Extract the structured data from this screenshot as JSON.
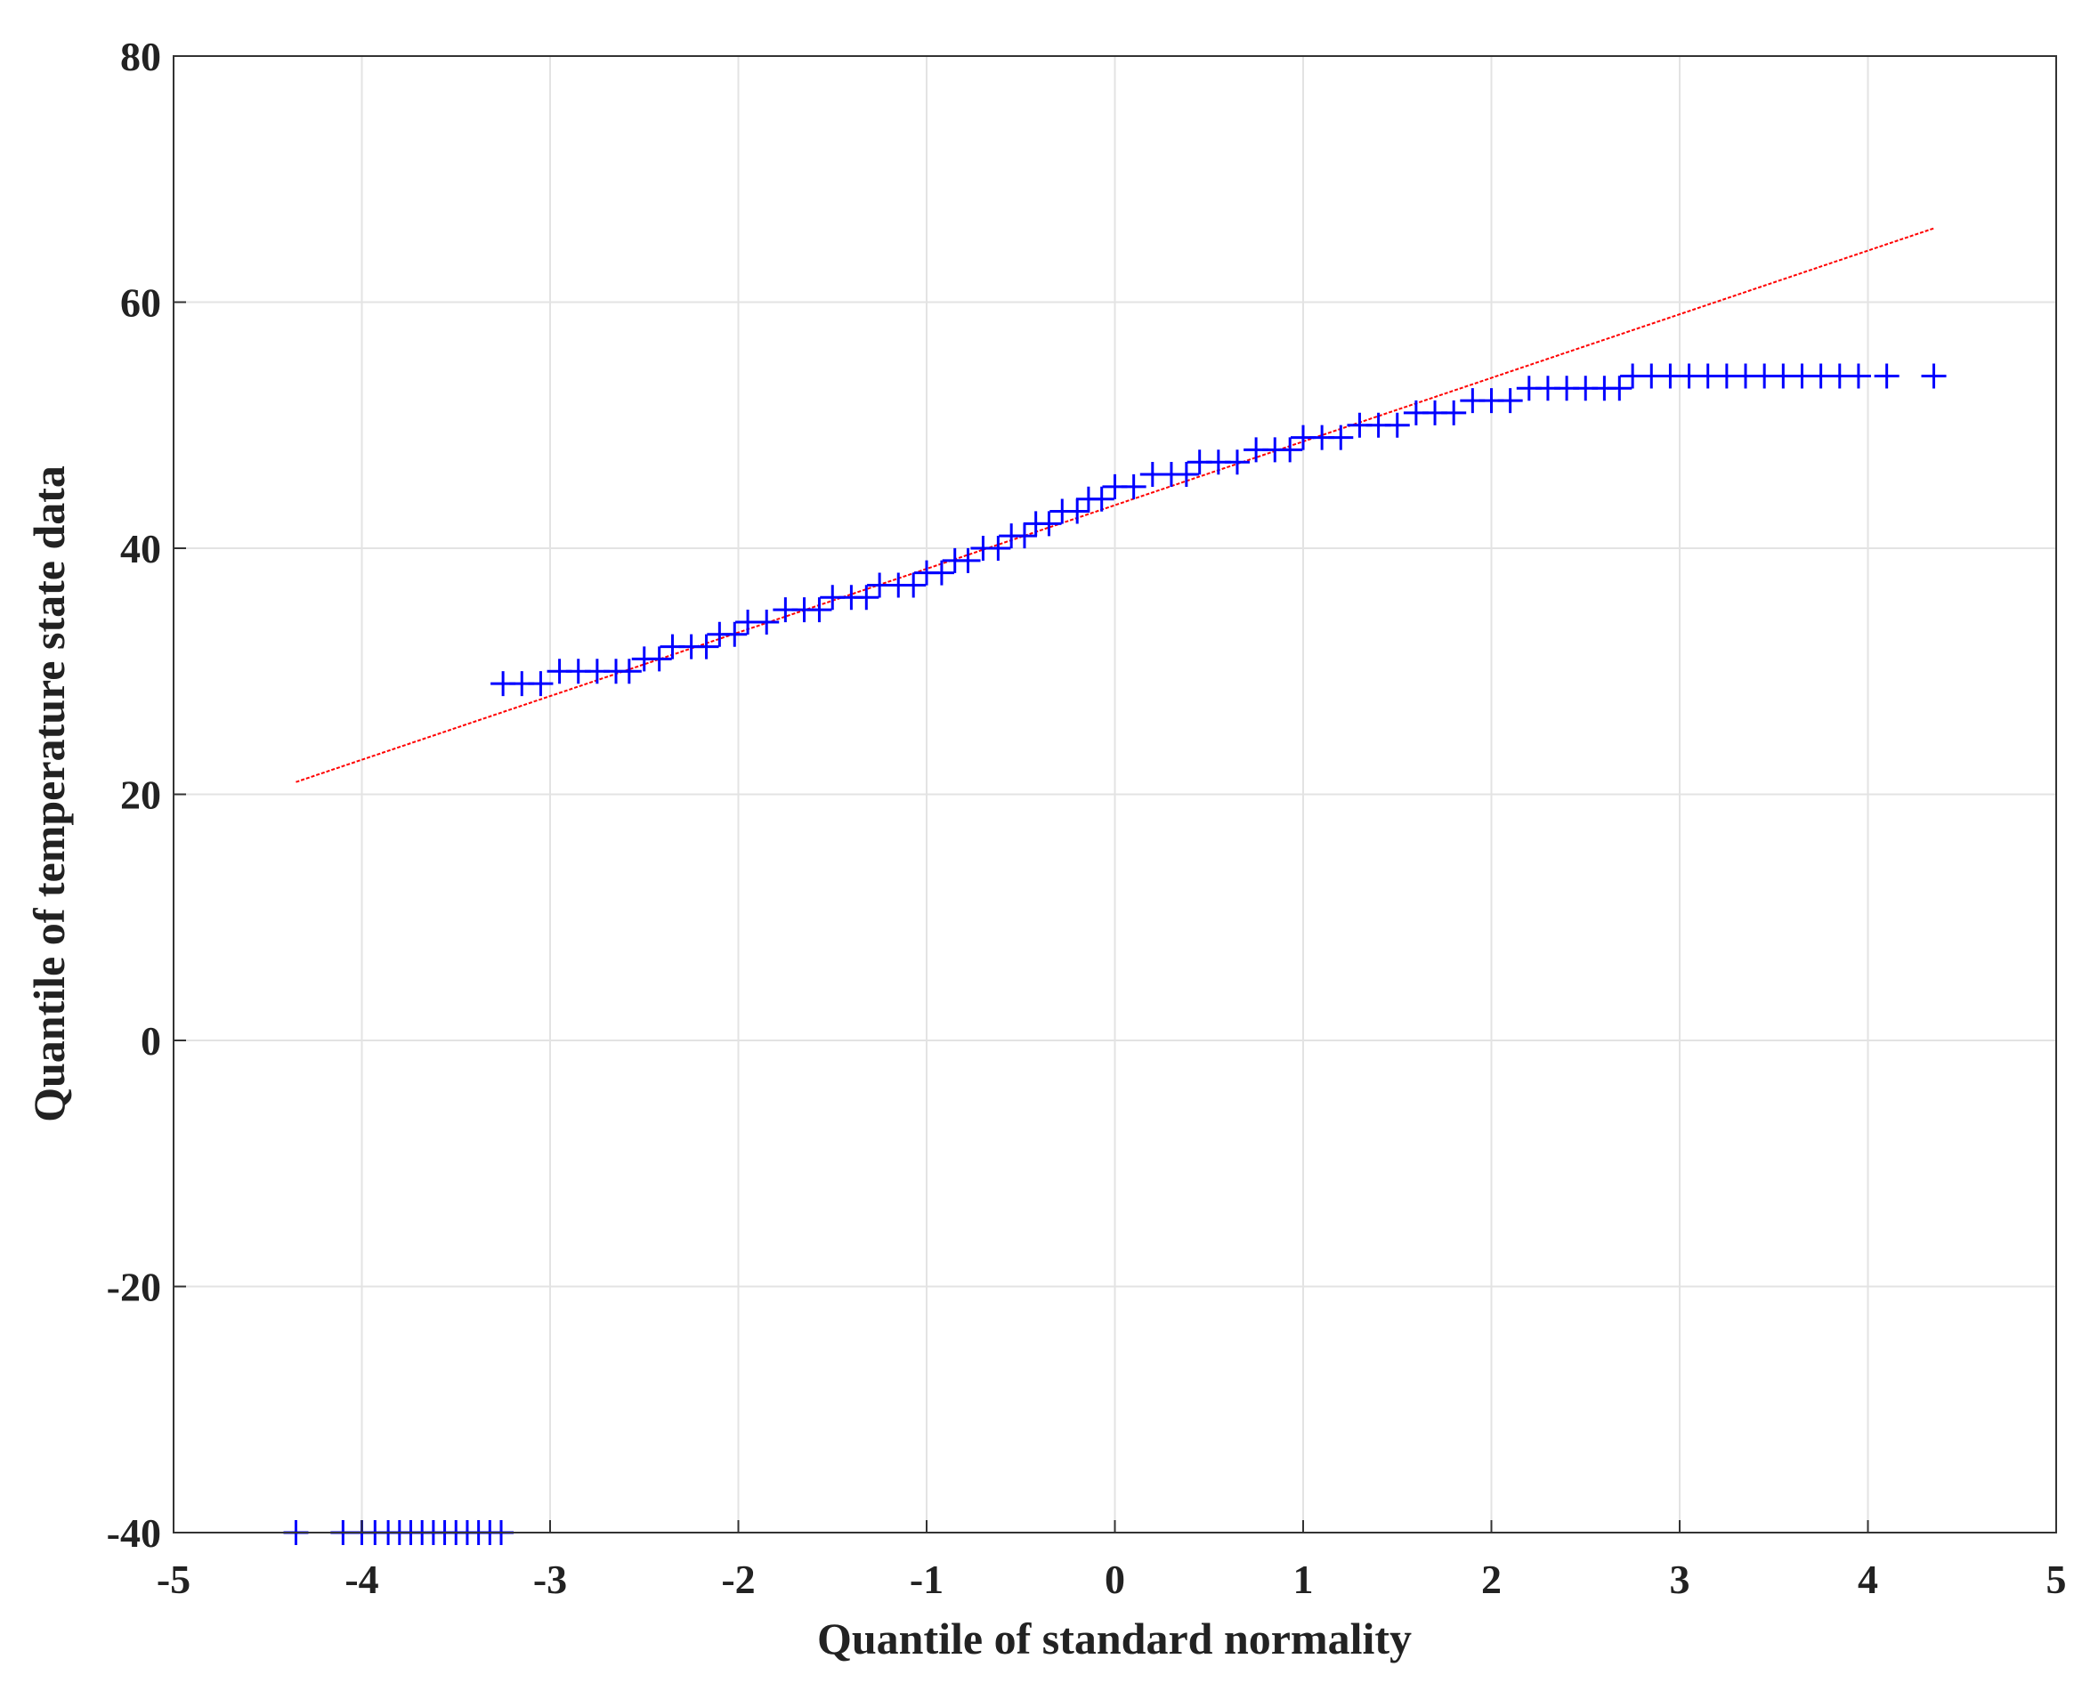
{
  "chart_data": {
    "type": "scatter",
    "xlabel": "Quantile of standard normality",
    "ylabel": "Quantile of temperature state data",
    "xlim": [
      -5,
      5
    ],
    "ylim": [
      -40,
      80
    ],
    "xticks": [
      -5,
      -4,
      -3,
      -2,
      -1,
      0,
      1,
      2,
      3,
      4,
      5
    ],
    "yticks": [
      -40,
      -20,
      0,
      20,
      40,
      60,
      80
    ],
    "grid": true,
    "marker": "+",
    "color": "#0000ff",
    "x": [
      -4.35,
      -4.1,
      -4.0,
      -3.93,
      -3.86,
      -3.8,
      -3.74,
      -3.68,
      -3.62,
      -3.56,
      -3.5,
      -3.44,
      -3.38,
      -3.32,
      -3.26,
      -3.25,
      -3.15,
      -3.05,
      -2.95,
      -2.85,
      -2.75,
      -2.65,
      -2.58,
      -2.5,
      -2.42,
      -2.35,
      -2.25,
      -2.17,
      -2.1,
      -2.02,
      -1.95,
      -1.85,
      -1.75,
      -1.65,
      -1.57,
      -1.5,
      -1.4,
      -1.32,
      -1.25,
      -1.15,
      -1.07,
      -1.0,
      -0.92,
      -0.85,
      -0.78,
      -0.7,
      -0.62,
      -0.55,
      -0.48,
      -0.42,
      -0.35,
      -0.28,
      -0.2,
      -0.14,
      -0.07,
      0.0,
      0.1,
      0.2,
      0.3,
      0.38,
      0.45,
      0.55,
      0.65,
      0.75,
      0.85,
      0.93,
      1.0,
      1.1,
      1.2,
      1.3,
      1.4,
      1.5,
      1.6,
      1.7,
      1.8,
      1.9,
      2.0,
      2.1,
      2.2,
      2.3,
      2.4,
      2.5,
      2.6,
      2.68,
      2.75,
      2.85,
      2.95,
      3.05,
      3.15,
      3.25,
      3.35,
      3.45,
      3.55,
      3.65,
      3.75,
      3.85,
      3.95,
      4.1,
      4.35
    ],
    "values": [
      -40,
      -40,
      -40,
      -40,
      -40,
      -40,
      -40,
      -40,
      -40,
      -40,
      -40,
      -40,
      -40,
      -40,
      -40,
      29,
      29,
      29,
      30,
      30,
      30,
      30,
      30,
      31,
      31,
      32,
      32,
      32,
      33,
      33,
      34,
      34,
      35,
      35,
      35,
      36,
      36,
      36,
      37,
      37,
      37,
      38,
      38,
      39,
      39,
      40,
      40,
      41,
      41,
      42,
      42,
      43,
      43,
      44,
      44,
      45,
      45,
      46,
      46,
      46,
      47,
      47,
      47,
      48,
      48,
      48,
      49,
      49,
      49,
      50,
      50,
      50,
      51,
      51,
      51,
      52,
      52,
      52,
      53,
      53,
      53,
      53,
      53,
      53,
      54,
      54,
      54,
      54,
      54,
      54,
      54,
      54,
      54,
      54,
      54,
      54,
      54,
      54,
      54
    ],
    "reference_line": {
      "x": [
        -4.35,
        4.35
      ],
      "values": [
        21,
        66
      ],
      "color": "#ff0000"
    }
  }
}
